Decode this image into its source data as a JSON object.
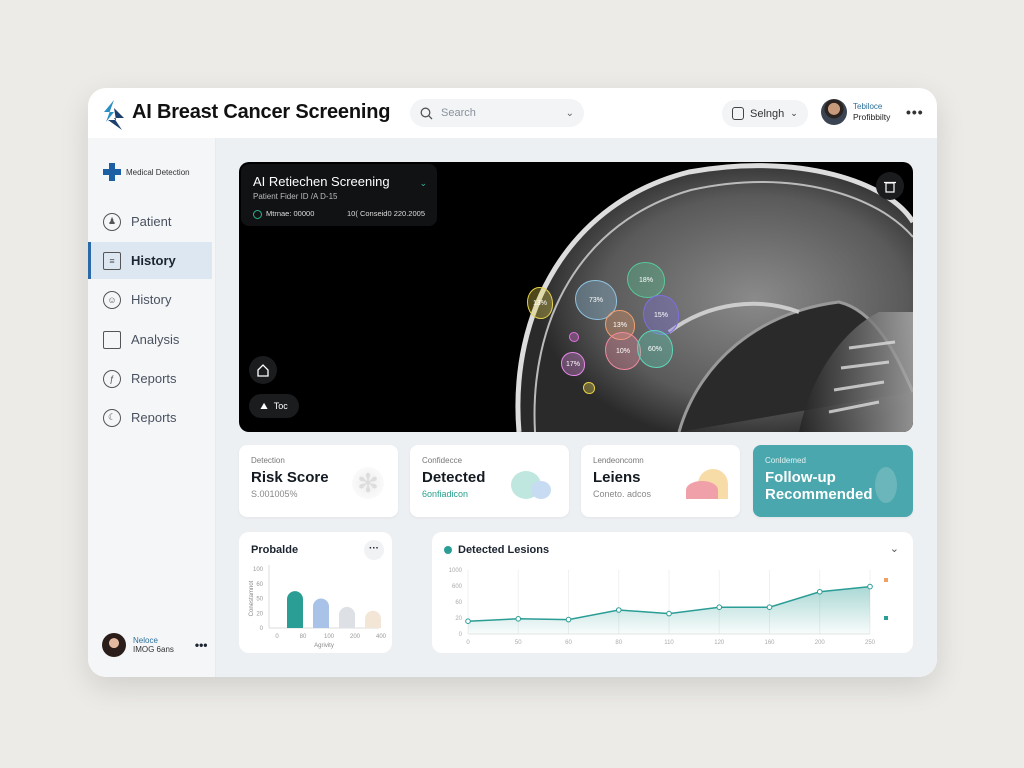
{
  "header": {
    "title": "AI Breast Cancer Screening",
    "search_placeholder": "Search",
    "selector_label": "Selngh",
    "user_name": "Tebiloce",
    "user_role": "Profibbilty",
    "more": "•••"
  },
  "sidebar": {
    "brand": "Medical Detection",
    "items": [
      {
        "label": "Patient",
        "icon": "patient-icon"
      },
      {
        "label": "History",
        "icon": "book-icon",
        "active": true
      },
      {
        "label": "History",
        "icon": "person-icon"
      },
      {
        "label": "Analysis",
        "icon": "chat-icon"
      },
      {
        "label": "Reports",
        "icon": "function-icon"
      },
      {
        "label": "Reports",
        "icon": "clock-icon"
      }
    ],
    "footer_name": "Neloce",
    "footer_role": "IMOG 6ans",
    "footer_more": "•••"
  },
  "scan": {
    "title": "AI Retiechen Screening",
    "patient": "Patient Fider ID /A D-15",
    "metric": "Mtrnae: 00000",
    "meta": "10( Conseid0 220.2005",
    "tool_label": "Toc",
    "lesions": [
      {
        "label": "13%",
        "color": "#e8d44a"
      },
      {
        "label": "73%",
        "color": "#8fc3e0"
      },
      {
        "label": "18%",
        "color": "#58c99a"
      },
      {
        "label": "13%",
        "color": "#f0a070"
      },
      {
        "label": "15%",
        "color": "#7c6fe0"
      },
      {
        "label": "",
        "color": "#e070e0"
      },
      {
        "label": "10%",
        "color": "#f08aa0"
      },
      {
        "label": "60%",
        "color": "#5fd6b8"
      },
      {
        "label": "17%",
        "color": "#e58ae8"
      },
      {
        "label": "",
        "color": "#e8d44a"
      }
    ]
  },
  "cards": [
    {
      "label": "Detection",
      "value": "Risk Score",
      "sub": "S.001005%"
    },
    {
      "label": "Confidecce",
      "value": "Detected",
      "sub": "6onfiadicon",
      "sub_color": "#2aa08c"
    },
    {
      "label": "Lendeoncomn",
      "value": "Leiens",
      "sub": "Coneto. adcos"
    },
    {
      "label": "Conldemed",
      "value": "Follow-up Recommended"
    }
  ],
  "chart_data": [
    {
      "type": "bar",
      "title": "Probalde",
      "ylabel": "Conestamnot",
      "xlabel": "Agrivity",
      "y_ticks": [
        "0",
        "20",
        "50",
        "60",
        "100"
      ],
      "x_ticks": [
        "0",
        "80",
        "100",
        "200",
        "400"
      ],
      "values": [
        55,
        50,
        33,
        25
      ],
      "colors": [
        "#2a9d95",
        "#a9c2e8",
        "#dde0e4",
        "#f3e6d6"
      ],
      "grid": false
    },
    {
      "type": "area",
      "title": "Detected Lesions",
      "y_ticks": [
        "0",
        "20",
        "60",
        "600",
        "1000"
      ],
      "x": [
        "0",
        "50",
        "60",
        "80",
        "110",
        "120",
        "160",
        "200",
        "250"
      ],
      "values": [
        16,
        19,
        18,
        40,
        31,
        47,
        47,
        406,
        580
      ],
      "color": "#2a9d95",
      "legend_colors": [
        "#f0a060",
        "#2a9d95"
      ],
      "grid": true,
      "legend": "right"
    }
  ]
}
